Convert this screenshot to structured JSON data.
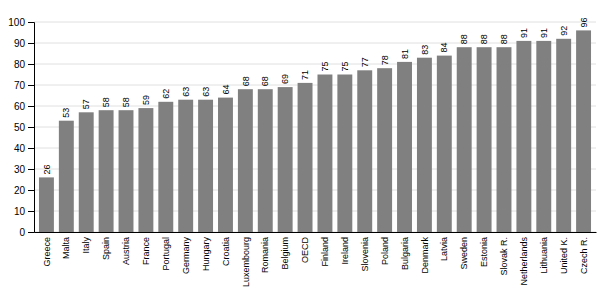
{
  "chart_data": {
    "type": "bar",
    "categories": [
      "Greece",
      "Malta",
      "Italy",
      "Spain",
      "Austria",
      "France",
      "Portugal",
      "Germany",
      "Hungary",
      "Croatia",
      "Luxembourg",
      "Romania",
      "Belgium",
      "OECD",
      "Finland",
      "Ireland",
      "Slovenia",
      "Poland",
      "Bulgaria",
      "Denmark",
      "Latvia",
      "Sweden",
      "Estonia",
      "Slovak R.",
      "Netherlands",
      "Lithuania",
      "United K.",
      "Czech R."
    ],
    "values": [
      26,
      53,
      57,
      58,
      58,
      59,
      62,
      63,
      63,
      64,
      68,
      68,
      69,
      71,
      75,
      75,
      77,
      78,
      81,
      83,
      84,
      88,
      88,
      88,
      91,
      91,
      92,
      96
    ],
    "color": "#808080",
    "ylim": [
      0,
      100
    ],
    "yticks": [
      0,
      10,
      20,
      30,
      40,
      50,
      60,
      70,
      80,
      90,
      100
    ],
    "grid": true,
    "data_labels": true
  }
}
